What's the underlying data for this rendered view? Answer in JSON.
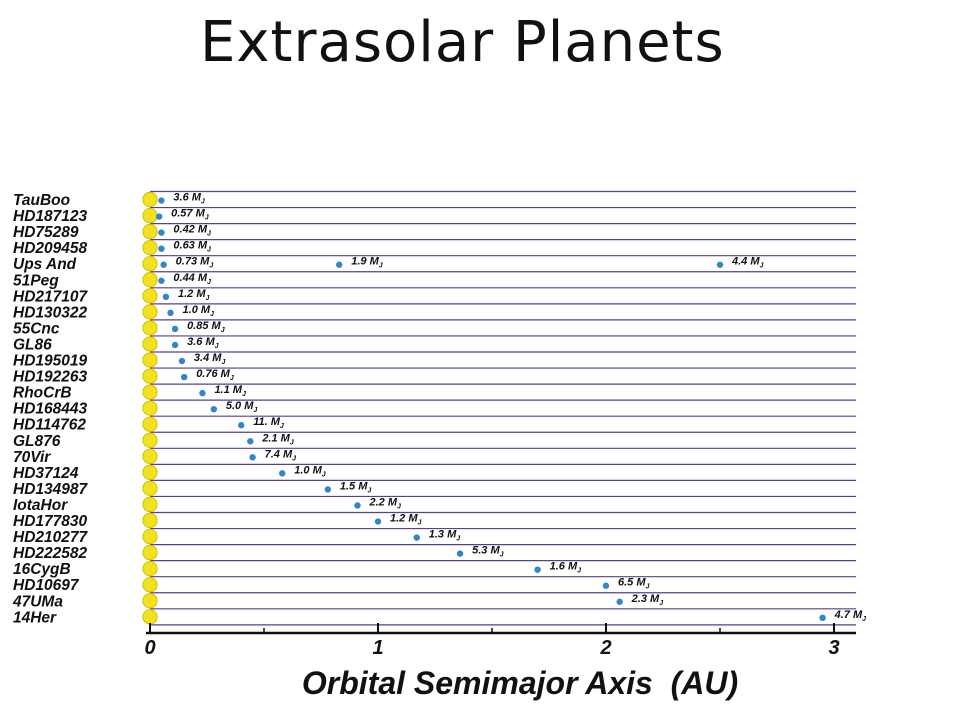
{
  "title": "Extrasolar Planets",
  "colors": {
    "row_line": "#5a3f8f",
    "star": "#f2e11c",
    "star_edge": "#c9b800",
    "planet": "#2f86c9",
    "axis": "#111111"
  },
  "chart_data": {
    "type": "scatter",
    "xlabel": "Orbital Semimajor Axis  (AU)",
    "xlim": [
      0,
      3.1
    ],
    "xticks": [
      0,
      1,
      2,
      3
    ],
    "mass_unit": "M",
    "mass_unit_sub": "J",
    "rows": [
      {
        "name": "TauBoo",
        "planets": [
          {
            "a": 0.05,
            "mass": "3.6"
          }
        ]
      },
      {
        "name": "HD187123",
        "planets": [
          {
            "a": 0.04,
            "mass": "0.57"
          }
        ]
      },
      {
        "name": "HD75289",
        "planets": [
          {
            "a": 0.05,
            "mass": "0.42"
          }
        ]
      },
      {
        "name": "HD209458",
        "planets": [
          {
            "a": 0.05,
            "mass": "0.63"
          }
        ]
      },
      {
        "name": "Ups And",
        "planets": [
          {
            "a": 0.06,
            "mass": "0.73"
          },
          {
            "a": 0.83,
            "mass": "1.9"
          },
          {
            "a": 2.5,
            "mass": "4.4"
          }
        ]
      },
      {
        "name": "51Peg",
        "planets": [
          {
            "a": 0.05,
            "mass": "0.44"
          }
        ]
      },
      {
        "name": "HD217107",
        "planets": [
          {
            "a": 0.07,
            "mass": "1.2"
          }
        ]
      },
      {
        "name": "HD130322",
        "planets": [
          {
            "a": 0.09,
            "mass": "1.0"
          }
        ]
      },
      {
        "name": "55Cnc",
        "planets": [
          {
            "a": 0.11,
            "mass": "0.85"
          }
        ]
      },
      {
        "name": "GL86",
        "planets": [
          {
            "a": 0.11,
            "mass": "3.6"
          }
        ]
      },
      {
        "name": "HD195019",
        "planets": [
          {
            "a": 0.14,
            "mass": "3.4"
          }
        ]
      },
      {
        "name": "HD192263",
        "planets": [
          {
            "a": 0.15,
            "mass": "0.76"
          }
        ]
      },
      {
        "name": "RhoCrB",
        "planets": [
          {
            "a": 0.23,
            "mass": "1.1"
          }
        ]
      },
      {
        "name": "HD168443",
        "planets": [
          {
            "a": 0.28,
            "mass": "5.0"
          }
        ]
      },
      {
        "name": "HD114762",
        "planets": [
          {
            "a": 0.4,
            "mass": "11."
          }
        ]
      },
      {
        "name": "GL876",
        "planets": [
          {
            "a": 0.44,
            "mass": "2.1"
          }
        ]
      },
      {
        "name": "70Vir",
        "planets": [
          {
            "a": 0.45,
            "mass": "7.4"
          }
        ]
      },
      {
        "name": "HD37124",
        "planets": [
          {
            "a": 0.58,
            "mass": "1.0"
          }
        ]
      },
      {
        "name": "HD134987",
        "planets": [
          {
            "a": 0.78,
            "mass": "1.5"
          }
        ]
      },
      {
        "name": "IotaHor",
        "planets": [
          {
            "a": 0.91,
            "mass": "2.2"
          }
        ]
      },
      {
        "name": "HD177830",
        "planets": [
          {
            "a": 1.0,
            "mass": "1.2"
          }
        ]
      },
      {
        "name": "HD210277",
        "planets": [
          {
            "a": 1.17,
            "mass": "1.3"
          }
        ]
      },
      {
        "name": "HD222582",
        "planets": [
          {
            "a": 1.36,
            "mass": "5.3"
          }
        ]
      },
      {
        "name": "16CygB",
        "planets": [
          {
            "a": 1.7,
            "mass": "1.6"
          }
        ]
      },
      {
        "name": "HD10697",
        "planets": [
          {
            "a": 2.0,
            "mass": "6.5"
          }
        ]
      },
      {
        "name": "47UMa",
        "planets": [
          {
            "a": 2.06,
            "mass": "2.3"
          }
        ]
      },
      {
        "name": "14Her",
        "planets": [
          {
            "a": 2.95,
            "mass": "4.7"
          }
        ]
      }
    ]
  }
}
